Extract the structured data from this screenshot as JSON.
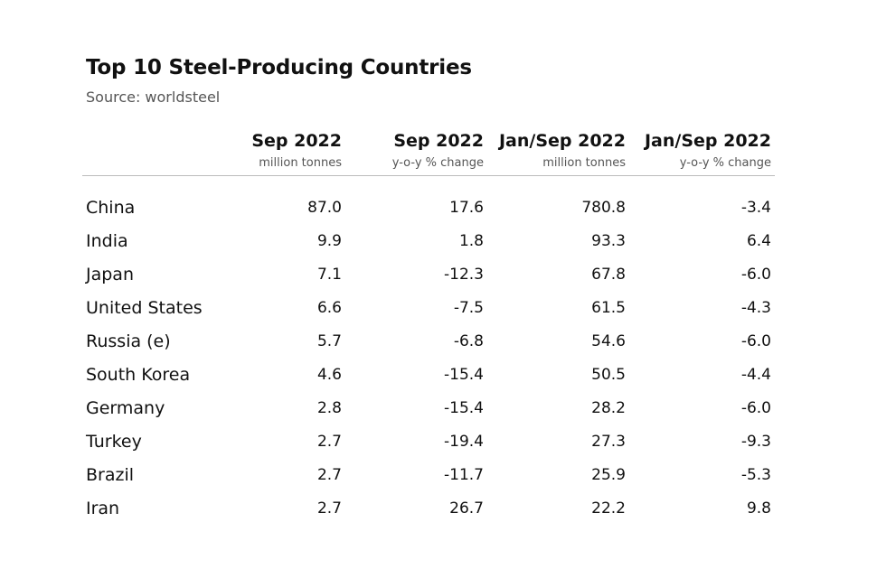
{
  "title": "Top 10 Steel-Producing Countries",
  "subtitle": "Source: worldsteel",
  "chart_data": {
    "type": "table",
    "columns": [
      {
        "label": "",
        "sublabel": ""
      },
      {
        "label": "Sep 2022",
        "sublabel": "million tonnes"
      },
      {
        "label": "Sep 2022",
        "sublabel": "y-o-y % change"
      },
      {
        "label": "Jan/Sep 2022",
        "sublabel": "million tonnes"
      },
      {
        "label": "Jan/Sep 2022",
        "sublabel": "y-o-y % change"
      }
    ],
    "rows": [
      [
        "China",
        "87.0",
        "17.6",
        "780.8",
        "-3.4"
      ],
      [
        "India",
        "9.9",
        "1.8",
        "93.3",
        "6.4"
      ],
      [
        "Japan",
        "7.1",
        "-12.3",
        "67.8",
        "-6.0"
      ],
      [
        "United States",
        "6.6",
        "-7.5",
        "61.5",
        "-4.3"
      ],
      [
        "Russia (e)",
        "5.7",
        "-6.8",
        "54.6",
        "-6.0"
      ],
      [
        "South Korea",
        "4.6",
        "-15.4",
        "50.5",
        "-4.4"
      ],
      [
        "Germany",
        "2.8",
        "-15.4",
        "28.2",
        "-6.0"
      ],
      [
        "Turkey",
        "2.7",
        "-19.4",
        "27.3",
        "-9.3"
      ],
      [
        "Brazil",
        "2.7",
        "-11.7",
        "25.9",
        "-5.3"
      ],
      [
        "Iran",
        "2.7",
        "26.7",
        "22.2",
        "9.8"
      ]
    ]
  }
}
